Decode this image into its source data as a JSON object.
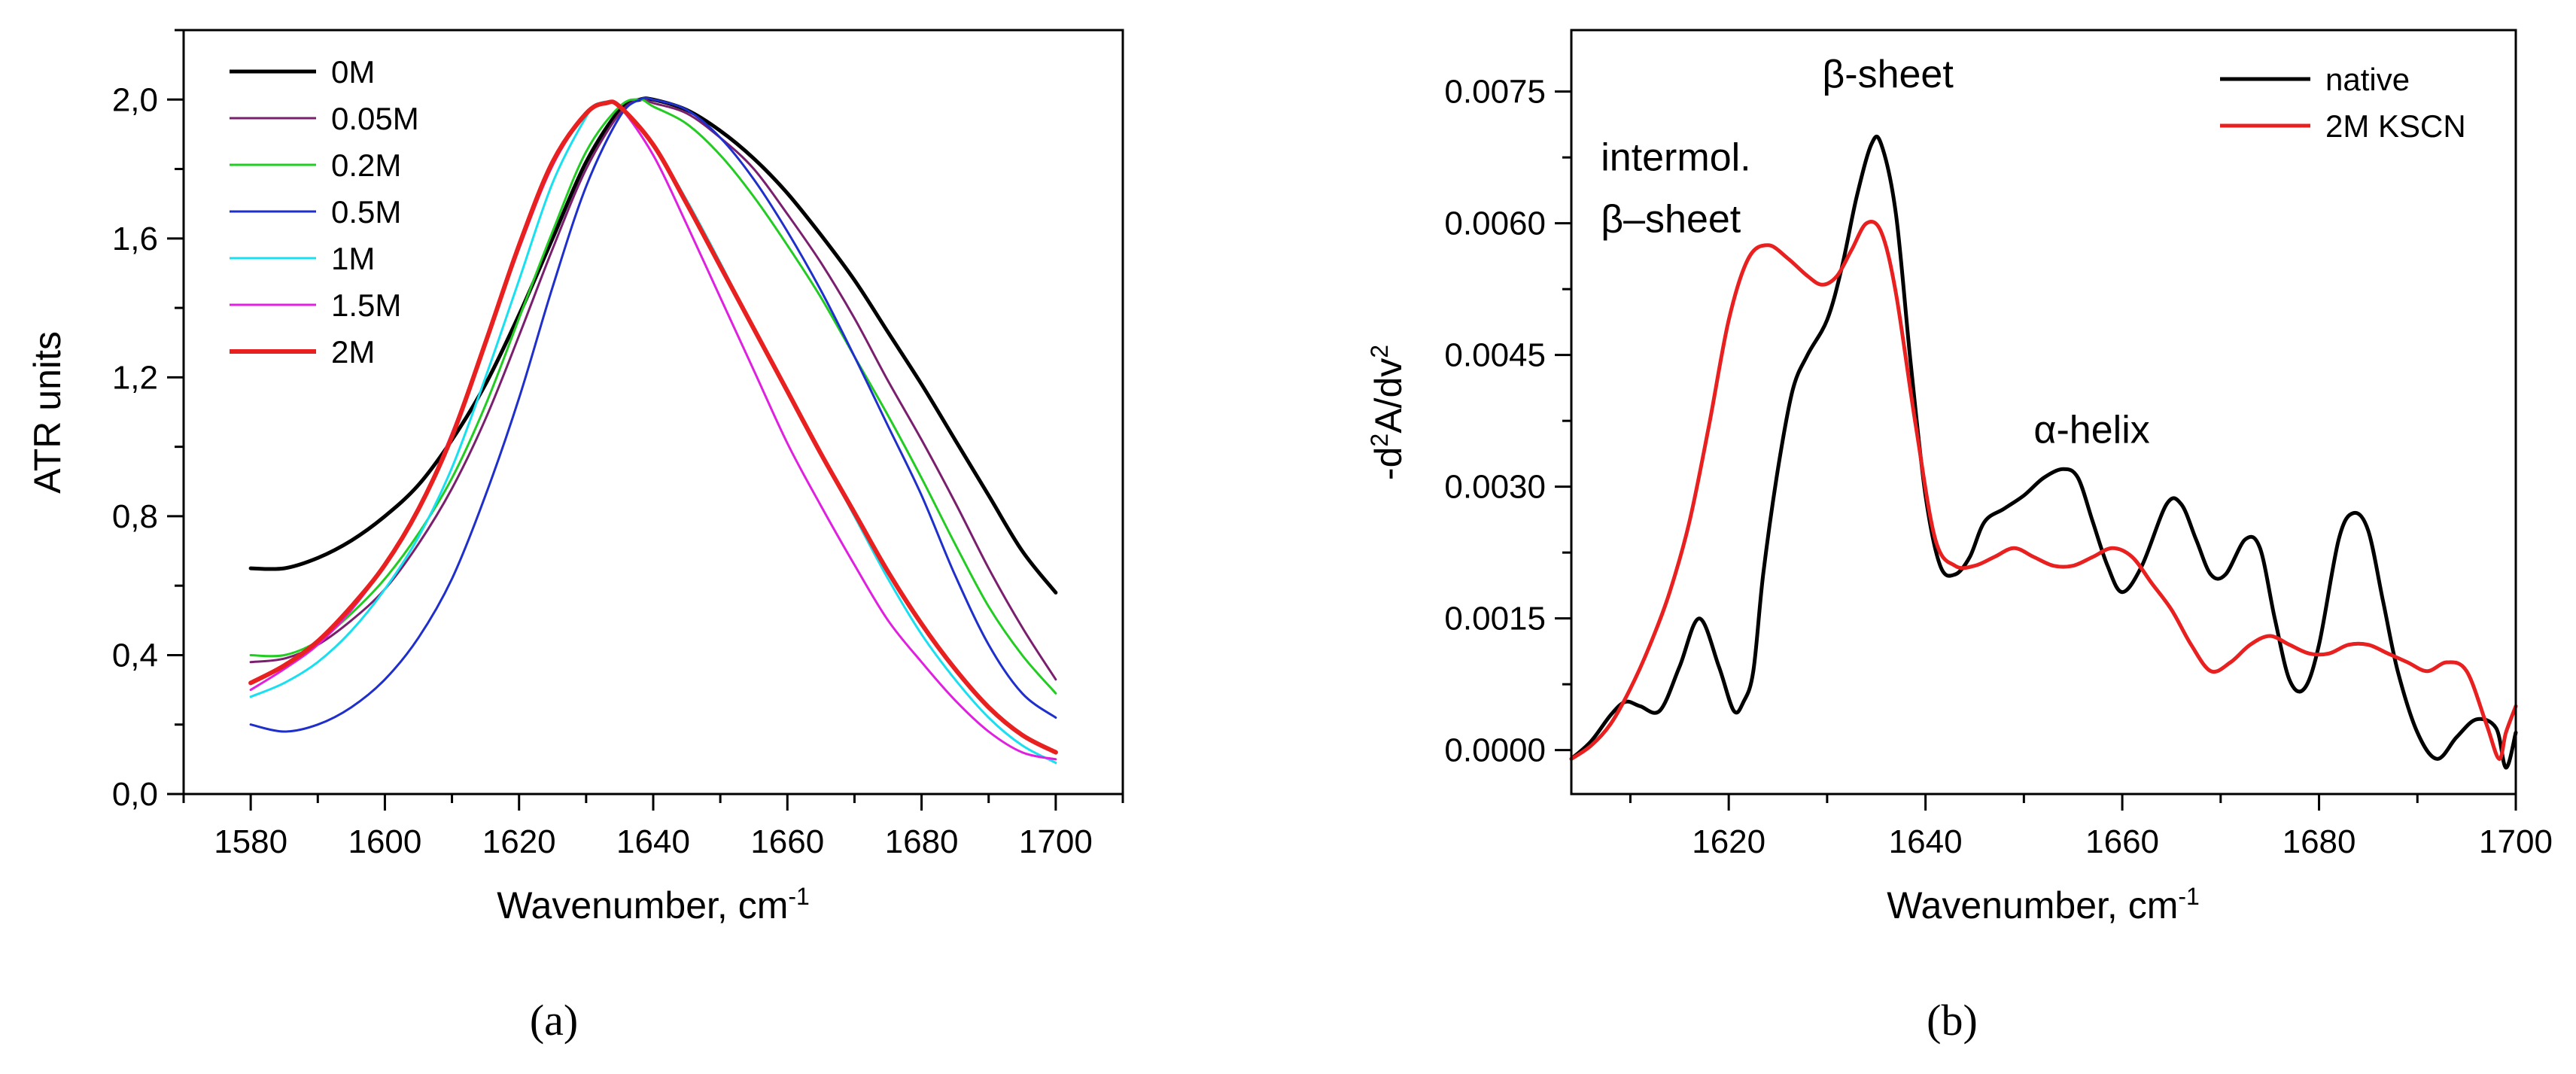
{
  "chart_data": [
    {
      "type": "line",
      "panel_label": "(a)",
      "xlabel": "Wavenumber, cm",
      "xlabel_sup": "-1",
      "ylabel": "ATR units",
      "xlim": [
        1570,
        1710
      ],
      "ylim": [
        0,
        2.2
      ],
      "xticks": [
        1580,
        1600,
        1620,
        1640,
        1660,
        1680,
        1700
      ],
      "yticks": [
        0,
        0.4,
        0.8,
        1.2,
        1.6,
        2.0
      ],
      "ytick_labels": [
        "0,0",
        "0,4",
        "0,8",
        "1,2",
        "1,6",
        "2,0"
      ],
      "legend_position": "top-left",
      "series": [
        {
          "name": "0M",
          "color": "#000000",
          "width": 5,
          "x": [
            1580,
            1585,
            1590,
            1595,
            1600,
            1605,
            1610,
            1615,
            1620,
            1625,
            1630,
            1635,
            1638,
            1640,
            1645,
            1650,
            1655,
            1660,
            1665,
            1670,
            1675,
            1680,
            1685,
            1690,
            1695,
            1700
          ],
          "y": [
            0.65,
            0.65,
            0.68,
            0.73,
            0.8,
            0.89,
            1.02,
            1.18,
            1.38,
            1.6,
            1.82,
            1.97,
            2.0,
            2.0,
            1.97,
            1.91,
            1.83,
            1.73,
            1.61,
            1.48,
            1.33,
            1.18,
            1.02,
            0.86,
            0.7,
            0.58
          ]
        },
        {
          "name": "0.05M",
          "color": "#7a1f6e",
          "width": 3,
          "x": [
            1580,
            1585,
            1590,
            1595,
            1600,
            1605,
            1610,
            1615,
            1620,
            1625,
            1630,
            1635,
            1638,
            1640,
            1645,
            1650,
            1655,
            1660,
            1665,
            1670,
            1675,
            1680,
            1685,
            1690,
            1695,
            1700
          ],
          "y": [
            0.38,
            0.39,
            0.43,
            0.5,
            0.59,
            0.72,
            0.88,
            1.08,
            1.32,
            1.57,
            1.8,
            1.96,
            2.0,
            1.99,
            1.96,
            1.89,
            1.8,
            1.67,
            1.53,
            1.37,
            1.19,
            1.02,
            0.84,
            0.65,
            0.48,
            0.33
          ]
        },
        {
          "name": "0.2M",
          "color": "#22cc22",
          "width": 3,
          "x": [
            1580,
            1585,
            1590,
            1595,
            1600,
            1605,
            1610,
            1615,
            1620,
            1625,
            1630,
            1635,
            1638,
            1640,
            1645,
            1650,
            1655,
            1660,
            1665,
            1670,
            1675,
            1680,
            1685,
            1690,
            1695,
            1700
          ],
          "y": [
            0.4,
            0.4,
            0.44,
            0.52,
            0.62,
            0.75,
            0.91,
            1.12,
            1.37,
            1.62,
            1.85,
            1.98,
            2.0,
            1.98,
            1.93,
            1.84,
            1.72,
            1.58,
            1.43,
            1.26,
            1.09,
            0.91,
            0.72,
            0.54,
            0.4,
            0.29
          ]
        },
        {
          "name": "0.5M",
          "color": "#1f2fcc",
          "width": 3,
          "x": [
            1580,
            1585,
            1590,
            1595,
            1600,
            1605,
            1610,
            1615,
            1620,
            1625,
            1630,
            1635,
            1638,
            1640,
            1645,
            1650,
            1655,
            1660,
            1665,
            1670,
            1675,
            1680,
            1685,
            1690,
            1695,
            1700
          ],
          "y": [
            0.2,
            0.18,
            0.2,
            0.25,
            0.33,
            0.45,
            0.62,
            0.86,
            1.14,
            1.46,
            1.75,
            1.95,
            2.0,
            2.0,
            1.97,
            1.89,
            1.77,
            1.62,
            1.45,
            1.26,
            1.06,
            0.86,
            0.63,
            0.43,
            0.29,
            0.22
          ]
        },
        {
          "name": "1M",
          "color": "#18e0f0",
          "width": 3,
          "x": [
            1580,
            1585,
            1590,
            1595,
            1600,
            1605,
            1610,
            1615,
            1620,
            1625,
            1630,
            1632,
            1635,
            1640,
            1645,
            1650,
            1655,
            1660,
            1665,
            1670,
            1675,
            1680,
            1685,
            1690,
            1695,
            1700
          ],
          "y": [
            0.28,
            0.32,
            0.38,
            0.47,
            0.59,
            0.74,
            0.94,
            1.2,
            1.48,
            1.76,
            1.95,
            1.99,
            1.98,
            1.87,
            1.71,
            1.53,
            1.34,
            1.16,
            0.98,
            0.8,
            0.62,
            0.46,
            0.33,
            0.22,
            0.14,
            0.09
          ]
        },
        {
          "name": "1.5M",
          "color": "#e020e0",
          "width": 3,
          "x": [
            1580,
            1585,
            1590,
            1595,
            1600,
            1605,
            1610,
            1615,
            1620,
            1625,
            1630,
            1633,
            1635,
            1640,
            1645,
            1650,
            1655,
            1660,
            1665,
            1670,
            1675,
            1680,
            1685,
            1690,
            1695,
            1700
          ],
          "y": [
            0.3,
            0.36,
            0.43,
            0.53,
            0.66,
            0.82,
            1.04,
            1.3,
            1.57,
            1.81,
            1.96,
            1.99,
            1.98,
            1.84,
            1.64,
            1.43,
            1.22,
            1.01,
            0.83,
            0.66,
            0.5,
            0.38,
            0.27,
            0.18,
            0.12,
            0.1
          ]
        },
        {
          "name": "2M",
          "color": "#e82020",
          "width": 6,
          "x": [
            1580,
            1585,
            1590,
            1595,
            1600,
            1605,
            1610,
            1615,
            1620,
            1625,
            1630,
            1633,
            1635,
            1640,
            1645,
            1650,
            1655,
            1660,
            1665,
            1670,
            1675,
            1680,
            1685,
            1690,
            1695,
            1700
          ],
          "y": [
            0.32,
            0.37,
            0.44,
            0.54,
            0.66,
            0.82,
            1.03,
            1.3,
            1.58,
            1.82,
            1.96,
            1.99,
            1.98,
            1.87,
            1.7,
            1.52,
            1.34,
            1.16,
            0.98,
            0.81,
            0.64,
            0.49,
            0.36,
            0.25,
            0.17,
            0.12
          ]
        }
      ]
    },
    {
      "type": "line",
      "panel_label": "(b)",
      "xlabel": "Wavenumber, cm",
      "xlabel_sup": "-1",
      "ylabel_parts": [
        "-d",
        "2",
        "A/dv",
        "2"
      ],
      "xlim": [
        1604,
        1700
      ],
      "ylim": [
        -0.0005,
        0.0082
      ],
      "xticks": [
        1620,
        1640,
        1660,
        1680,
        1700
      ],
      "yticks": [
        0,
        0.0015,
        0.003,
        0.0045,
        0.006,
        0.0075
      ],
      "ytick_labels": [
        "0.0000",
        "0.0015",
        "0.0030",
        "0.0045",
        "0.0060",
        "0.0075"
      ],
      "legend_position": "top-right",
      "annotations": [
        {
          "text": "intermol.",
          "x": 1607,
          "y": 0.0066
        },
        {
          "text": "β–sheet",
          "x": 1607,
          "y": 0.0059
        },
        {
          "text": "β-sheet",
          "x": 1629.5,
          "y": 0.00755
        },
        {
          "text": "α-helix",
          "x": 1651,
          "y": 0.0035
        }
      ],
      "series": [
        {
          "name": "native",
          "color": "#000000",
          "width": 5,
          "x": [
            1604,
            1606,
            1608,
            1609.5,
            1611,
            1613,
            1615,
            1617,
            1619,
            1620.5,
            1621.5,
            1622.5,
            1623.5,
            1625,
            1626.5,
            1628,
            1630,
            1631.5,
            1633,
            1634.5,
            1635.5,
            1637,
            1638.5,
            1640,
            1641.5,
            1643,
            1644.5,
            1646,
            1648,
            1650,
            1652,
            1654,
            1655.5,
            1657,
            1658.5,
            1660,
            1662,
            1664.5,
            1666,
            1667.5,
            1669,
            1670.5,
            1672.5,
            1674,
            1675.5,
            1677,
            1678.5,
            1680,
            1682,
            1683.5,
            1685,
            1686.5,
            1688,
            1690,
            1692,
            1694,
            1696,
            1698,
            1699,
            1700
          ],
          "y": [
            -0.0001,
            0.0001,
            0.0004,
            0.00055,
            0.0005,
            0.00045,
            0.00095,
            0.0015,
            0.00095,
            0.00045,
            0.00055,
            0.0009,
            0.002,
            0.0032,
            0.0041,
            0.0045,
            0.0049,
            0.0055,
            0.0063,
            0.0069,
            0.0069,
            0.0061,
            0.0044,
            0.0029,
            0.0021,
            0.002,
            0.0022,
            0.0026,
            0.00275,
            0.0029,
            0.0031,
            0.0032,
            0.0031,
            0.0026,
            0.0021,
            0.0018,
            0.0021,
            0.0028,
            0.0028,
            0.0024,
            0.002,
            0.002,
            0.0024,
            0.0023,
            0.0015,
            0.0008,
            0.0007,
            0.0012,
            0.0024,
            0.0027,
            0.0025,
            0.0017,
            0.0009,
            0.0002,
            -0.0001,
            0.00015,
            0.00035,
            0.00025,
            -0.0002,
            0.0002
          ]
        },
        {
          "name": "2M KSCN",
          "color": "#e82020",
          "width": 5,
          "x": [
            1604,
            1606,
            1608,
            1610,
            1612,
            1614,
            1616,
            1618,
            1620,
            1622,
            1624,
            1626,
            1628,
            1629.5,
            1631,
            1632.5,
            1634,
            1635.5,
            1637,
            1639,
            1641,
            1643,
            1645,
            1647,
            1649,
            1651,
            1653,
            1655,
            1657,
            1659,
            1661,
            1663,
            1665,
            1667,
            1669,
            1671,
            1673,
            1675,
            1677,
            1679,
            1681,
            1683,
            1685,
            1687,
            1689,
            1691,
            1693,
            1695,
            1697,
            1698.3,
            1699,
            1700
          ],
          "y": [
            -0.0001,
            5e-05,
            0.0003,
            0.0007,
            0.0012,
            0.0018,
            0.0026,
            0.0037,
            0.0049,
            0.0056,
            0.00575,
            0.0056,
            0.0054,
            0.0053,
            0.0054,
            0.0057,
            0.006,
            0.0059,
            0.0052,
            0.0037,
            0.0024,
            0.0021,
            0.0021,
            0.0022,
            0.0023,
            0.0022,
            0.0021,
            0.0021,
            0.0022,
            0.0023,
            0.0022,
            0.0019,
            0.0016,
            0.0012,
            0.0009,
            0.001,
            0.0012,
            0.0013,
            0.0012,
            0.0011,
            0.0011,
            0.0012,
            0.0012,
            0.0011,
            0.001,
            0.0009,
            0.001,
            0.0009,
            0.0003,
            -0.0001,
            0.0002,
            0.0005
          ]
        }
      ]
    }
  ]
}
